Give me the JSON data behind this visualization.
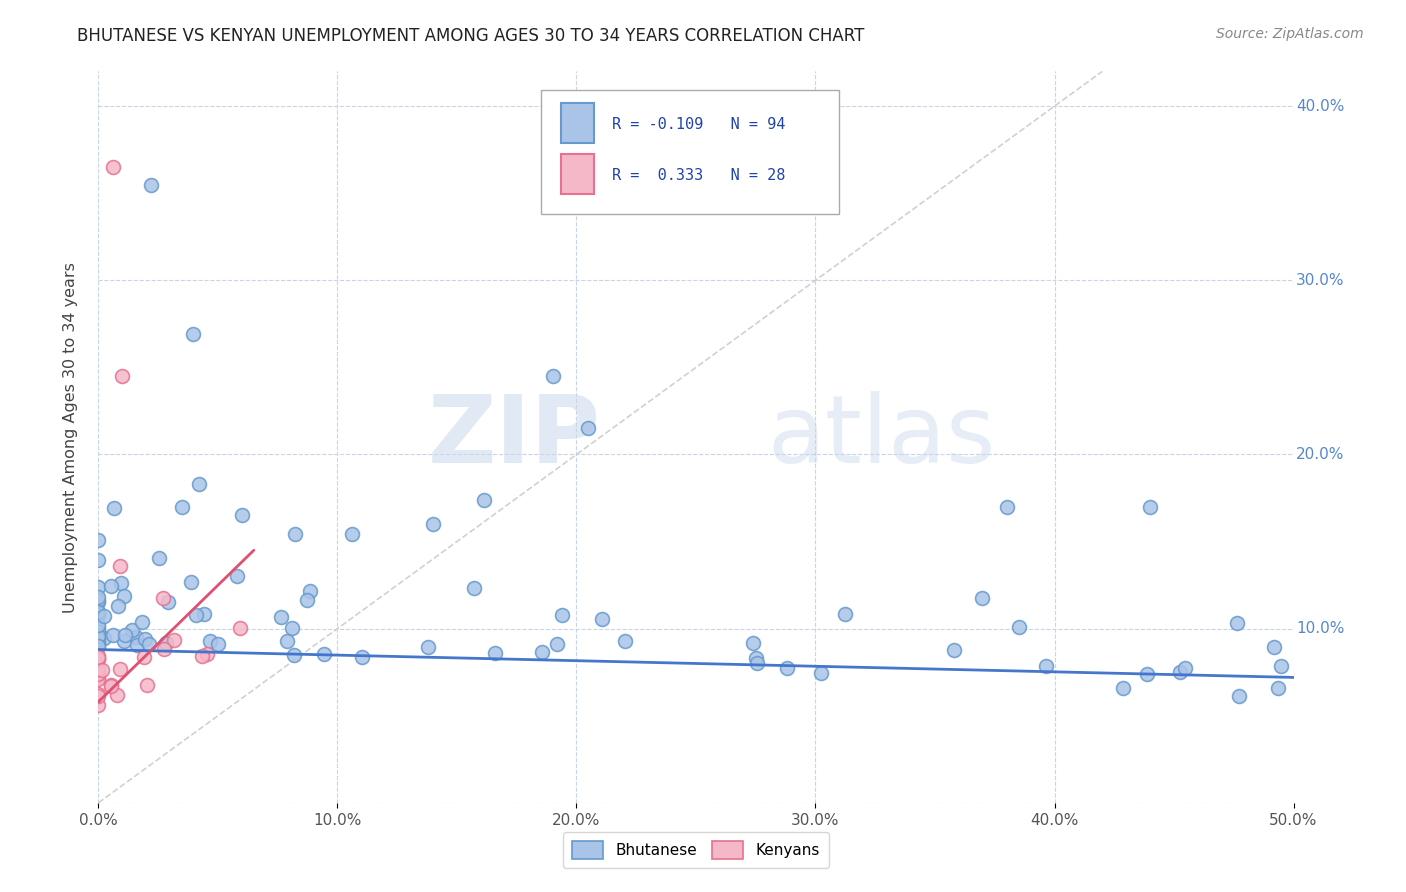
{
  "title": "BHUTANESE VS KENYAN UNEMPLOYMENT AMONG AGES 30 TO 34 YEARS CORRELATION CHART",
  "source": "Source: ZipAtlas.com",
  "ylabel": "Unemployment Among Ages 30 to 34 years",
  "xlim": [
    0.0,
    0.5
  ],
  "ylim": [
    0.0,
    0.42
  ],
  "background_color": "#ffffff",
  "grid_color": "#c8d4e8",
  "bhutanese_color": "#aac4e8",
  "bhutanese_edge_color": "#6699cc",
  "kenyan_color": "#f4b8c8",
  "kenyan_edge_color": "#e87090",
  "trend_bhutanese_color": "#4477cc",
  "trend_kenyan_color": "#e05070",
  "diag_color": "#cccccc",
  "ytick_color": "#5588cc",
  "legend_bhutanese_label": "Bhutanese",
  "legend_kenyan_label": "Kenyans",
  "R_bhutanese": -0.109,
  "N_bhutanese": 94,
  "R_kenyan": 0.333,
  "N_kenyan": 28,
  "watermark_zip": "ZIP",
  "watermark_atlas": "atlas",
  "title_fontsize": 12,
  "source_fontsize": 10
}
